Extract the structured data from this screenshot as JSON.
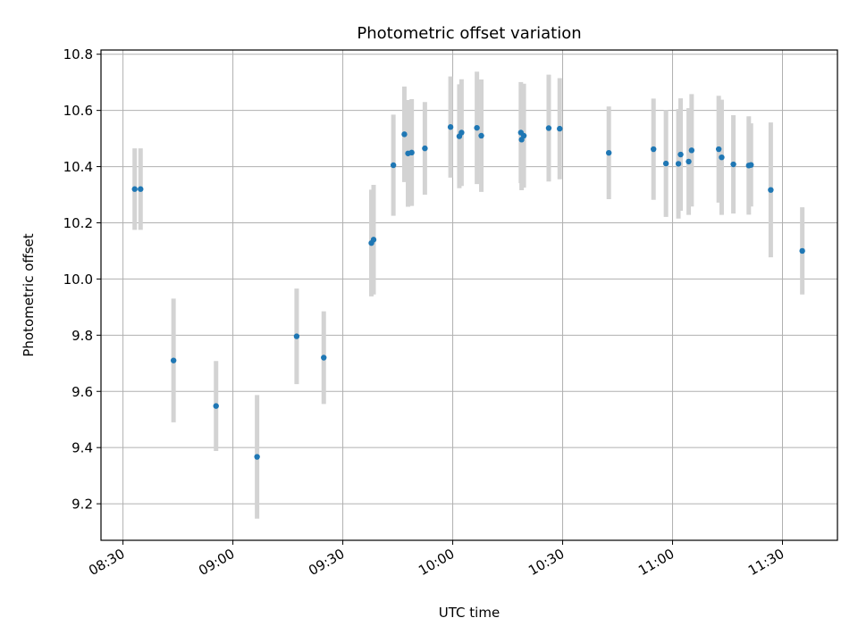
{
  "chart_data": {
    "type": "scatter",
    "title": "Photometric offset variation",
    "xlabel": "UTC time",
    "ylabel": "Photometric offset",
    "x_axis": {
      "type": "time",
      "min": "08:24",
      "max": "11:45",
      "ticks": [
        "08:30",
        "09:00",
        "09:30",
        "10:00",
        "10:30",
        "11:00",
        "11:30"
      ]
    },
    "y_axis": {
      "min": 9.07,
      "max": 10.815,
      "ticks": [
        "9.2",
        "9.4",
        "9.6",
        "9.8",
        "10.0",
        "10.2",
        "10.4",
        "10.6",
        "10.8"
      ]
    },
    "grid": true,
    "colors": {
      "point": "#1f77b4",
      "errorbar": "#d3d3d3",
      "grid": "#b0b0b0"
    },
    "points": [
      {
        "x": "08:33:12",
        "y": 10.32,
        "err": 0.145
      },
      {
        "x": "08:34:48",
        "y": 10.32,
        "err": 0.145
      },
      {
        "x": "08:43:48",
        "y": 9.71,
        "err": 0.22
      },
      {
        "x": "08:55:24",
        "y": 9.548,
        "err": 0.16
      },
      {
        "x": "09:06:36",
        "y": 9.367,
        "err": 0.22
      },
      {
        "x": "09:17:24",
        "y": 9.796,
        "err": 0.17
      },
      {
        "x": "09:24:48",
        "y": 9.72,
        "err": 0.165
      },
      {
        "x": "09:37:48",
        "y": 10.128,
        "err": 0.19
      },
      {
        "x": "09:38:24",
        "y": 10.14,
        "err": 0.195
      },
      {
        "x": "09:43:48",
        "y": 10.405,
        "err": 0.18
      },
      {
        "x": "09:46:48",
        "y": 10.515,
        "err": 0.17
      },
      {
        "x": "09:47:48",
        "y": 10.447,
        "err": 0.19
      },
      {
        "x": "09:48:48",
        "y": 10.45,
        "err": 0.19
      },
      {
        "x": "09:52:24",
        "y": 10.465,
        "err": 0.165
      },
      {
        "x": "09:59:24",
        "y": 10.541,
        "err": 0.18
      },
      {
        "x": "10:01:48",
        "y": 10.508,
        "err": 0.185
      },
      {
        "x": "10:02:24",
        "y": 10.521,
        "err": 0.19
      },
      {
        "x": "10:06:36",
        "y": 10.538,
        "err": 0.2
      },
      {
        "x": "10:07:48",
        "y": 10.51,
        "err": 0.2
      },
      {
        "x": "10:18:36",
        "y": 10.521,
        "err": 0.18
      },
      {
        "x": "10:18:48",
        "y": 10.496,
        "err": 0.18
      },
      {
        "x": "10:19:24",
        "y": 10.51,
        "err": 0.185
      },
      {
        "x": "10:26:12",
        "y": 10.537,
        "err": 0.19
      },
      {
        "x": "10:29:12",
        "y": 10.535,
        "err": 0.18
      },
      {
        "x": "10:42:36",
        "y": 10.449,
        "err": 0.165
      },
      {
        "x": "10:54:48",
        "y": 10.462,
        "err": 0.18
      },
      {
        "x": "10:58:12",
        "y": 10.411,
        "err": 0.19
      },
      {
        "x": "11:01:36",
        "y": 10.41,
        "err": 0.195
      },
      {
        "x": "11:02:12",
        "y": 10.443,
        "err": 0.2
      },
      {
        "x": "11:04:24",
        "y": 10.418,
        "err": 0.19
      },
      {
        "x": "11:05:12",
        "y": 10.458,
        "err": 0.2
      },
      {
        "x": "11:12:36",
        "y": 10.462,
        "err": 0.19
      },
      {
        "x": "11:13:24",
        "y": 10.433,
        "err": 0.205
      },
      {
        "x": "11:16:36",
        "y": 10.408,
        "err": 0.175
      },
      {
        "x": "11:20:48",
        "y": 10.404,
        "err": 0.175
      },
      {
        "x": "11:21:24",
        "y": 10.406,
        "err": 0.148
      },
      {
        "x": "11:26:48",
        "y": 10.317,
        "err": 0.24
      },
      {
        "x": "11:35:24",
        "y": 10.1,
        "err": 0.155
      }
    ]
  }
}
